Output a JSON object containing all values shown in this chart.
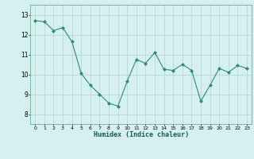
{
  "x": [
    0,
    1,
    2,
    3,
    4,
    5,
    6,
    7,
    8,
    9,
    10,
    11,
    12,
    13,
    14,
    15,
    16,
    17,
    18,
    19,
    20,
    21,
    22,
    23
  ],
  "y": [
    12.7,
    12.65,
    12.2,
    12.35,
    11.65,
    10.05,
    9.45,
    9.0,
    8.55,
    8.4,
    9.65,
    10.75,
    10.55,
    11.1,
    10.25,
    10.2,
    10.5,
    10.2,
    8.65,
    9.45,
    10.3,
    10.1,
    10.45,
    10.3
  ],
  "line_color": "#2e8b74",
  "marker": "D",
  "marker_size": 2,
  "bg_color": "#d6f0ef",
  "grid_color": "#b8d8d4",
  "xlabel": "Humidex (Indice chaleur)",
  "ylim": [
    7.5,
    13.5
  ],
  "xlim": [
    -0.5,
    23.5
  ],
  "yticks": [
    8,
    9,
    10,
    11,
    12,
    13
  ],
  "xticks": [
    0,
    1,
    2,
    3,
    4,
    5,
    6,
    7,
    8,
    9,
    10,
    11,
    12,
    13,
    14,
    15,
    16,
    17,
    18,
    19,
    20,
    21,
    22,
    23
  ]
}
